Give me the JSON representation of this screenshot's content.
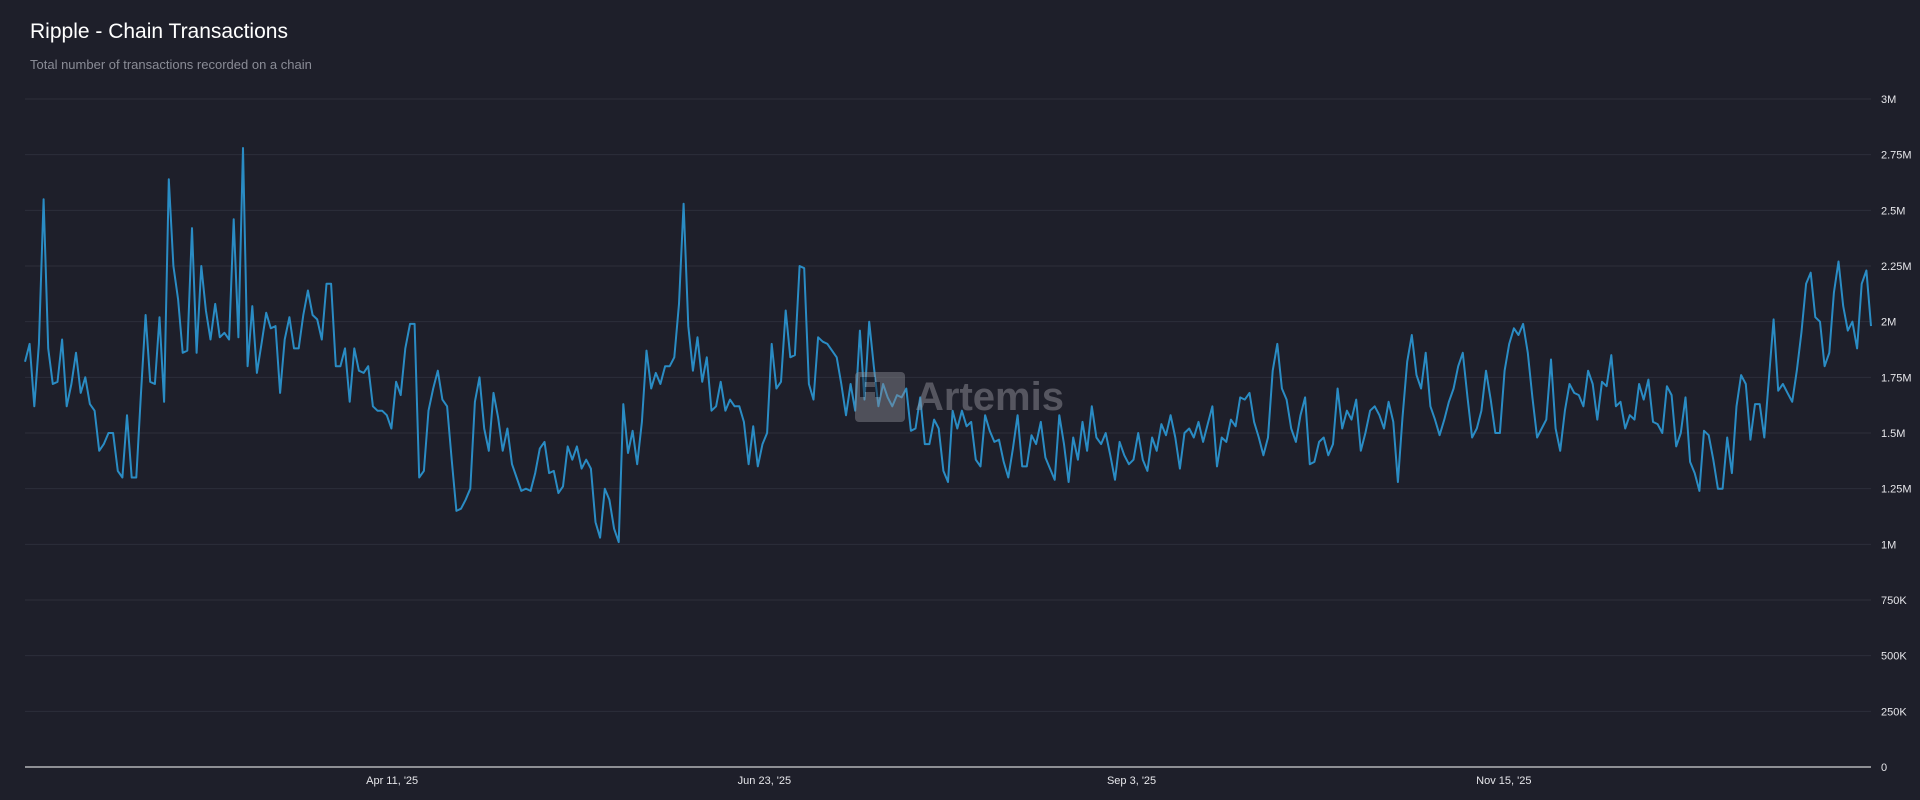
{
  "colors": {
    "background": "#1e1f2a",
    "line": "#2a8cc4",
    "grid": "#2d2f3a",
    "axis": "#ffffff"
  },
  "watermark": {
    "text": "Artemis",
    "icon": "artemis-logo-icon"
  },
  "chart_data": {
    "type": "line",
    "title": "Ripple - Chain Transactions",
    "subtitle": "Total number of transactions recorded on a chain",
    "xlabel": "",
    "ylabel": "",
    "x_range": [
      "2025-01-29",
      "2026-01-26"
    ],
    "ylim": [
      0,
      3000000
    ],
    "grid": true,
    "y_axis_side": "right",
    "y_ticks": [
      {
        "value": 0,
        "label": "0"
      },
      {
        "value": 250000,
        "label": "250K"
      },
      {
        "value": 500000,
        "label": "500K"
      },
      {
        "value": 750000,
        "label": "750K"
      },
      {
        "value": 1000000,
        "label": "1M"
      },
      {
        "value": 1250000,
        "label": "1.25M"
      },
      {
        "value": 1500000,
        "label": "1.5M"
      },
      {
        "value": 1750000,
        "label": "1.75M"
      },
      {
        "value": 2000000,
        "label": "2M"
      },
      {
        "value": 2250000,
        "label": "2.25M"
      },
      {
        "value": 2500000,
        "label": "2.5M"
      },
      {
        "value": 2750000,
        "label": "2.75M"
      },
      {
        "value": 3000000,
        "label": "3M"
      }
    ],
    "x_ticks": [
      {
        "date": "2025-04-11",
        "label": "Apr 11, '25"
      },
      {
        "date": "2025-06-23",
        "label": "Jun 23, '25"
      },
      {
        "date": "2025-09-03",
        "label": "Sep 3, '25"
      },
      {
        "date": "2025-11-15",
        "label": "Nov 15, '25"
      }
    ],
    "series": [
      {
        "values_millions": [
          1.82,
          1.9,
          1.62,
          1.9,
          2.55,
          1.88,
          1.72,
          1.73,
          1.92,
          1.62,
          1.72,
          1.86,
          1.68,
          1.75,
          1.63,
          1.6,
          1.42,
          1.45,
          1.5,
          1.5,
          1.33,
          1.3,
          1.58,
          1.3,
          1.3,
          1.68,
          2.03,
          1.73,
          1.72,
          2.02,
          1.64,
          2.64,
          2.25,
          2.1,
          1.86,
          1.87,
          2.42,
          1.86,
          2.25,
          2.05,
          1.92,
          2.08,
          1.93,
          1.95,
          1.92,
          2.46,
          1.93,
          2.78,
          1.8,
          2.07,
          1.77,
          1.9,
          2.04,
          1.97,
          1.98,
          1.68,
          1.92,
          2.02,
          1.88,
          1.88,
          2.03,
          2.14,
          2.03,
          2.01,
          1.92,
          2.17,
          2.17,
          1.8,
          1.8,
          1.88,
          1.64,
          1.88,
          1.78,
          1.77,
          1.8,
          1.62,
          1.6,
          1.6,
          1.58,
          1.52,
          1.73,
          1.67,
          1.88,
          1.99,
          1.99,
          1.3,
          1.33,
          1.6,
          1.7,
          1.78,
          1.65,
          1.62,
          1.38,
          1.15,
          1.16,
          1.2,
          1.25,
          1.64,
          1.75,
          1.52,
          1.42,
          1.68,
          1.57,
          1.42,
          1.52,
          1.36,
          1.3,
          1.24,
          1.25,
          1.24,
          1.32,
          1.43,
          1.46,
          1.32,
          1.33,
          1.23,
          1.26,
          1.44,
          1.38,
          1.44,
          1.34,
          1.38,
          1.34,
          1.1,
          1.03,
          1.25,
          1.2,
          1.07,
          1.01,
          1.63,
          1.41,
          1.51,
          1.36,
          1.55,
          1.87,
          1.7,
          1.77,
          1.72,
          1.8,
          1.8,
          1.84,
          2.08,
          2.53,
          1.98,
          1.78,
          1.93,
          1.73,
          1.84,
          1.6,
          1.62,
          1.73,
          1.6,
          1.65,
          1.62,
          1.62,
          1.55,
          1.36,
          1.53,
          1.35,
          1.45,
          1.5,
          1.9,
          1.7,
          1.73,
          2.05,
          1.84,
          1.85,
          2.25,
          2.24,
          1.72,
          1.65,
          1.93,
          1.91,
          1.9,
          1.87,
          1.84,
          1.72,
          1.58,
          1.72,
          1.6,
          1.96,
          1.65,
          2.0,
          1.8,
          1.62,
          1.72,
          1.66,
          1.62,
          1.67,
          1.66,
          1.7,
          1.51,
          1.52,
          1.66,
          1.45,
          1.45,
          1.56,
          1.52,
          1.33,
          1.28,
          1.6,
          1.52,
          1.6,
          1.53,
          1.55,
          1.38,
          1.35,
          1.58,
          1.51,
          1.46,
          1.47,
          1.37,
          1.3,
          1.43,
          1.58,
          1.35,
          1.35,
          1.49,
          1.45,
          1.55,
          1.39,
          1.34,
          1.29,
          1.58,
          1.45,
          1.28,
          1.48,
          1.38,
          1.55,
          1.42,
          1.62,
          1.48,
          1.45,
          1.5,
          1.4,
          1.29,
          1.46,
          1.4,
          1.36,
          1.38,
          1.5,
          1.38,
          1.33,
          1.48,
          1.42,
          1.54,
          1.49,
          1.58,
          1.48,
          1.34,
          1.5,
          1.52,
          1.48,
          1.55,
          1.46,
          1.54,
          1.62,
          1.35,
          1.48,
          1.46,
          1.56,
          1.53,
          1.66,
          1.65,
          1.68,
          1.55,
          1.48,
          1.4,
          1.48,
          1.78,
          1.9,
          1.7,
          1.65,
          1.52,
          1.46,
          1.58,
          1.66,
          1.36,
          1.37,
          1.46,
          1.48,
          1.4,
          1.45,
          1.7,
          1.52,
          1.6,
          1.56,
          1.65,
          1.42,
          1.5,
          1.6,
          1.62,
          1.58,
          1.52,
          1.64,
          1.55,
          1.28,
          1.57,
          1.82,
          1.94,
          1.76,
          1.7,
          1.86,
          1.62,
          1.56,
          1.49,
          1.56,
          1.64,
          1.7,
          1.8,
          1.86,
          1.66,
          1.48,
          1.52,
          1.6,
          1.78,
          1.65,
          1.5,
          1.5,
          1.78,
          1.9,
          1.97,
          1.94,
          1.99,
          1.86,
          1.66,
          1.48,
          1.52,
          1.56,
          1.83,
          1.52,
          1.42,
          1.6,
          1.72,
          1.68,
          1.67,
          1.62,
          1.78,
          1.72,
          1.56,
          1.73,
          1.71,
          1.85,
          1.62,
          1.64,
          1.52,
          1.58,
          1.56,
          1.72,
          1.65,
          1.74,
          1.55,
          1.54,
          1.5,
          1.71,
          1.67,
          1.44,
          1.5,
          1.66,
          1.37,
          1.32,
          1.24,
          1.51,
          1.49,
          1.38,
          1.25,
          1.25,
          1.48,
          1.32,
          1.62,
          1.76,
          1.72,
          1.47,
          1.63,
          1.63,
          1.48,
          1.75,
          2.01,
          1.69,
          1.72,
          1.68,
          1.64,
          1.78,
          1.95,
          2.17,
          2.22,
          2.02,
          2.0,
          1.8,
          1.86,
          2.13,
          2.27,
          2.07,
          1.96,
          2.0,
          1.88,
          2.17,
          2.23,
          1.98
        ]
      }
    ]
  }
}
